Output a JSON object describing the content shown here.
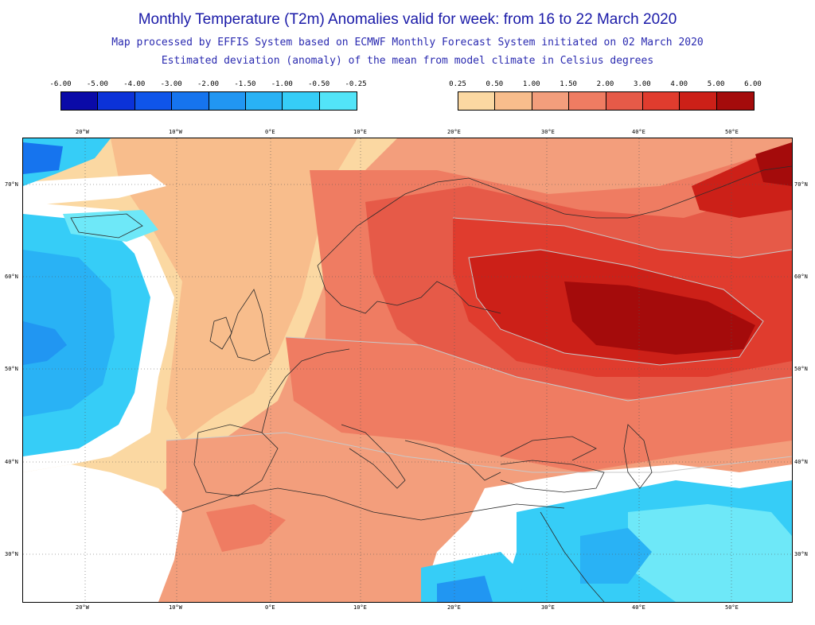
{
  "header": {
    "title": "Monthly Temperature (T2m) Anomalies valid for week: from 16 to 22 March 2020",
    "subtitle1": "Map processed by EFFIS System based on ECMWF Monthly Forecast System initiated on 02 March 2020",
    "subtitle2": "Estimated deviation (anomaly) of the mean from model climate in Celsius degrees"
  },
  "legend_cold": {
    "labels": [
      "-6.00",
      "-5.00",
      "-4.00",
      "-3.00",
      "-2.00",
      "-1.50",
      "-1.00",
      "-0.50",
      "-0.25"
    ],
    "colors": [
      "#0a0aa8",
      "#0b32d8",
      "#0f55ea",
      "#1674ee",
      "#2196f2",
      "#29b2f5",
      "#36cdf7",
      "#52e4f8"
    ]
  },
  "legend_warm": {
    "labels": [
      "0.25",
      "0.50",
      "1.00",
      "1.50",
      "2.00",
      "3.00",
      "4.00",
      "5.00",
      "6.00"
    ],
    "colors": [
      "#fbd8a2",
      "#f8bd8c",
      "#f39e7c",
      "#ef7c62",
      "#e65a48",
      "#e03c2e",
      "#cc2018",
      "#a40b0b"
    ]
  },
  "map": {
    "lon_labels": [
      "20°W",
      "10°W",
      "0°E",
      "10°E",
      "20°E",
      "30°E",
      "40°E",
      "50°E"
    ],
    "lat_labels": [
      "70°N",
      "60°N",
      "50°N",
      "40°N",
      "30°N"
    ],
    "colors": {
      "white": "#ffffff",
      "cyan_light": "#6ee8f8",
      "cyan": "#36cdf7",
      "blue_light": "#29b2f5",
      "blue": "#2196f2",
      "blue_dark": "#1674ee",
      "peach": "#fbd8a2",
      "light_orange": "#f8bd8c",
      "salmon": "#f39e7c",
      "coral": "#ef7c62",
      "red_orange": "#e65a48",
      "red": "#e03c2e",
      "dark_red": "#cc2018",
      "deep_red": "#a40b0b",
      "coast": "#2b2b2b",
      "contour": "#c8c8c8"
    }
  }
}
